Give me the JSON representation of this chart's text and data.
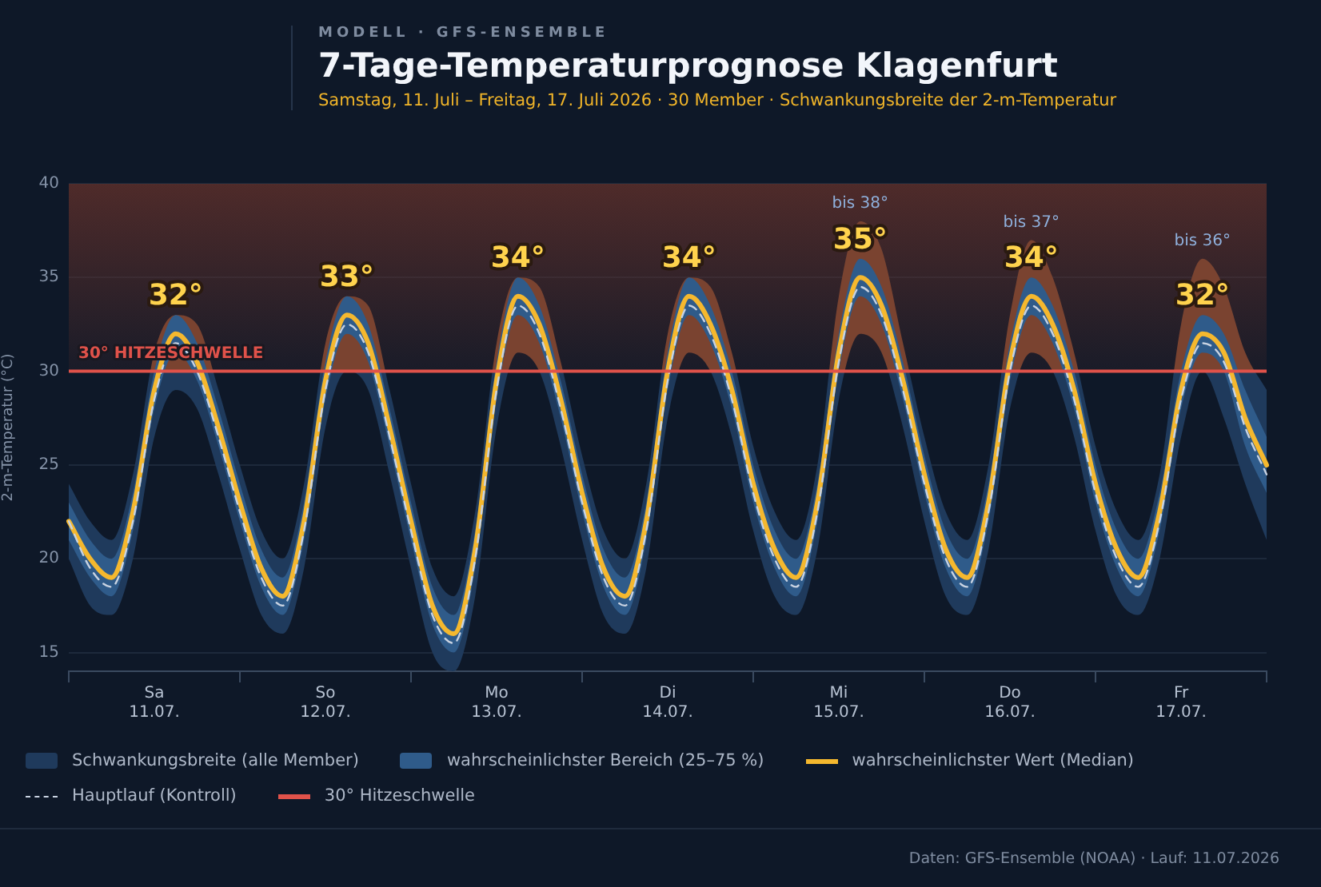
{
  "chart_data": {
    "type": "line",
    "title": "7-Tage-Temperaturprognose Klagenfurt",
    "subtitle": "Samstag, 11. Juli – Freitag, 17. Juli 2026 · 30 Member · Schwankungsbreite der 2-m-Temperatur",
    "ylabel": "2-m-Temperatur (°C)",
    "categories": [
      null,
      null,
      null,
      null,
      "Sa\n11.07.",
      null,
      null,
      null,
      null,
      null,
      null,
      null,
      "So\n12.07.",
      null,
      null,
      null,
      null,
      null,
      null,
      null,
      "Mo\n13.07.",
      null,
      null,
      null,
      null,
      null,
      null,
      null,
      "Di\n14.07.",
      null,
      null,
      null,
      null,
      null,
      null,
      null,
      "Mi\n15.07.",
      null,
      null,
      null,
      null,
      null,
      null,
      null,
      "Do\n16.07.",
      null,
      null,
      null,
      null,
      null,
      null,
      null,
      "Fr\n17.07.",
      null,
      null,
      null,
      null
    ],
    "series": [
      {
        "name": "Schwankungsbreite (alle Member)",
        "type": "area",
        "color": "#1f3a5c",
        "values": [
          null,
          null,
          null,
          null,
          null,
          null,
          null,
          null,
          null,
          null,
          null,
          null,
          null,
          null,
          null,
          null,
          null,
          null,
          null,
          null,
          null,
          null,
          null,
          null,
          null,
          null,
          null,
          null,
          null,
          null,
          null,
          null,
          null,
          null,
          null,
          null,
          null,
          null,
          null,
          null,
          null,
          null,
          null,
          null,
          null,
          null,
          null,
          null,
          null,
          null,
          null,
          null,
          null,
          null,
          null,
          null,
          null
        ],
        "upper": [
          24,
          22,
          21,
          24.5,
          31,
          33,
          32.5,
          29,
          25,
          21.5,
          20,
          24,
          31.5,
          34,
          33.5,
          29,
          24,
          19.5,
          18,
          22.5,
          31.5,
          35,
          34.5,
          30.5,
          25.5,
          21.5,
          20,
          24,
          32,
          35,
          34.5,
          31,
          26,
          22.5,
          21,
          25,
          34,
          38,
          36.5,
          31.5,
          26.5,
          22.5,
          21,
          25,
          33,
          37,
          35,
          31,
          26,
          22.5,
          21,
          24.5,
          32.5,
          36,
          34.5,
          31,
          29
        ],
        "lower": [
          20,
          17.5,
          17,
          20,
          26.5,
          29,
          28,
          24.5,
          20.5,
          17,
          16,
          19.5,
          27,
          30,
          29,
          24.5,
          19.5,
          15,
          14,
          18,
          27,
          31,
          30,
          26,
          21,
          17,
          16,
          19.5,
          27.5,
          31,
          30,
          26.5,
          21.5,
          18,
          17,
          20.5,
          28.5,
          32,
          31,
          27,
          22,
          18,
          17,
          20.5,
          28,
          31,
          30,
          26.5,
          21.5,
          18,
          17,
          20,
          26.5,
          30,
          27.5,
          24,
          21
        ],
        "value_labels": [
          null,
          null,
          null,
          null,
          null,
          null,
          null,
          null,
          null,
          null,
          null,
          null,
          null,
          null,
          null,
          null,
          null,
          null,
          null,
          null,
          null,
          null,
          null,
          null,
          null,
          null,
          null,
          null,
          null,
          null,
          null,
          null,
          null,
          null,
          null,
          null,
          null,
          "bis 38°",
          null,
          null,
          null,
          null,
          null,
          null,
          null,
          "bis 37°",
          null,
          null,
          null,
          null,
          null,
          null,
          null,
          "bis 36°",
          null,
          null,
          null
        ]
      },
      {
        "name": "wahrscheinlichster Bereich (25–75 %)",
        "type": "area",
        "color": "#2f5b8a",
        "values": [
          null,
          null,
          null,
          null,
          null,
          null,
          null,
          null,
          null,
          null,
          null,
          null,
          null,
          null,
          null,
          null,
          null,
          null,
          null,
          null,
          null,
          null,
          null,
          null,
          null,
          null,
          null,
          null,
          null,
          null,
          null,
          null,
          null,
          null,
          null,
          null,
          null,
          null,
          null,
          null,
          null,
          null,
          null,
          null,
          null,
          null,
          null,
          null,
          null,
          null,
          null,
          null,
          null,
          null,
          null,
          null,
          null
        ],
        "upper": [
          23,
          21,
          20,
          23.5,
          30,
          33,
          31.5,
          28,
          24,
          20.5,
          19,
          23,
          30.5,
          34,
          32.5,
          28,
          23,
          18.5,
          17,
          21.5,
          30.5,
          35,
          33.5,
          29.5,
          24.5,
          20.5,
          19,
          23,
          31,
          35,
          33.5,
          30,
          25,
          21.5,
          20,
          24,
          32,
          36,
          34.5,
          30.5,
          25.5,
          21.5,
          20,
          24,
          31.5,
          35,
          33.5,
          30,
          25,
          21.5,
          20,
          23.5,
          30,
          33,
          32,
          29,
          26.5
        ],
        "lower": [
          21,
          19,
          18,
          21.5,
          28,
          31,
          29.5,
          26,
          22,
          18.5,
          17,
          21,
          28.5,
          32,
          30.5,
          26,
          21,
          16.5,
          15,
          19.5,
          28.5,
          33,
          31.5,
          27.5,
          22.5,
          18.5,
          17,
          21,
          29,
          33,
          31.5,
          28,
          23,
          19.5,
          18,
          22,
          30,
          34,
          32.5,
          28.5,
          23.5,
          19.5,
          18,
          22,
          29.5,
          33,
          31.5,
          28,
          23,
          19.5,
          18,
          21.5,
          28,
          31,
          30,
          26,
          23.5
        ]
      },
      {
        "name": "wahrscheinlichster Wert (Median)",
        "color": "#f5b82e",
        "values": [
          22,
          20,
          19,
          22.5,
          29,
          32,
          30.5,
          27,
          23,
          19.5,
          18,
          22,
          29.5,
          33,
          31.5,
          27,
          22,
          17.5,
          16,
          20.5,
          29.5,
          34,
          32.5,
          28.5,
          23.5,
          19.5,
          18,
          22,
          30,
          34,
          32.5,
          29,
          24,
          20.5,
          19,
          23,
          31,
          35,
          33.5,
          29.5,
          24.5,
          20.5,
          19,
          23,
          30.5,
          34,
          32.5,
          29,
          24,
          20.5,
          19,
          22.5,
          29,
          32,
          31,
          27.5,
          25
        ],
        "value_labels": [
          null,
          null,
          null,
          null,
          null,
          "32°",
          null,
          null,
          null,
          null,
          null,
          null,
          null,
          "33°",
          null,
          null,
          null,
          null,
          null,
          null,
          null,
          "34°",
          null,
          null,
          null,
          null,
          null,
          null,
          null,
          "34°",
          null,
          null,
          null,
          null,
          null,
          null,
          null,
          "35°",
          null,
          null,
          null,
          null,
          null,
          null,
          null,
          "34°",
          null,
          null,
          null,
          null,
          null,
          null,
          null,
          "32°",
          null,
          null,
          null
        ]
      },
      {
        "name": "Hauptlauf (Kontroll)",
        "line_style": "dashed",
        "color": "#c9d3e2",
        "values": [
          22,
          19.5,
          18.5,
          22,
          28.5,
          31.5,
          30,
          26.5,
          22.5,
          19,
          17.5,
          21.5,
          29,
          32.5,
          31,
          26.5,
          21.5,
          17,
          15.5,
          20,
          29,
          33.5,
          32,
          28,
          23,
          19,
          17.5,
          21.5,
          29.5,
          33.5,
          32,
          28.5,
          23.5,
          20,
          18.5,
          22.5,
          30.5,
          34.5,
          33,
          29,
          24,
          20,
          18.5,
          22.5,
          30,
          33.5,
          32,
          28.5,
          23.5,
          20,
          18.5,
          22,
          28.5,
          31.5,
          30.5,
          27,
          24.5
        ]
      }
    ],
    "ylim": [
      14,
      40
    ],
    "yticks": [
      15,
      20,
      25,
      30,
      35,
      40
    ],
    "grid": "y",
    "legend": "bottom",
    "marker": "none",
    "ref_lines": [
      {
        "axis": "y",
        "value": 30,
        "label": "30° HITZESCHWELLE",
        "color": "#e0524a"
      }
    ],
    "bands": [
      {
        "axis": "y",
        "from": 30,
        "to": 40,
        "color": "#5a2e2a"
      }
    ],
    "annotations": [
      "MODELL · GFS-ENSEMBLE",
      "30° Hitzeschwelle",
      "Daten: GFS-Ensemble (NOAA) · Lauf: 11.07.2026"
    ]
  }
}
